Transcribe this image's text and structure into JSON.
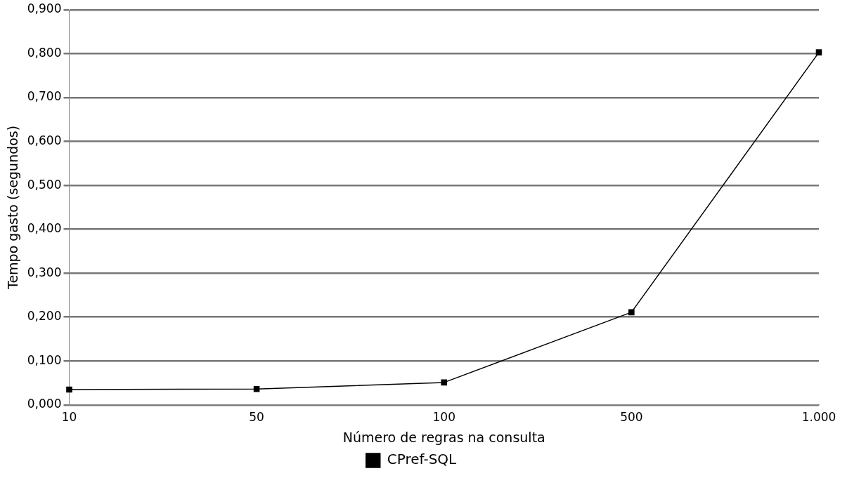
{
  "chart_data": {
    "type": "line",
    "xlabel": "Número de regras na consulta",
    "ylabel": "Tempo gasto (segundos)",
    "categories": [
      "10",
      "50",
      "100",
      "500",
      "1.000"
    ],
    "series": [
      {
        "name": "CPref-SQL",
        "color": "#000000",
        "values": [
          0.035,
          0.036,
          0.051,
          0.211,
          0.803
        ]
      }
    ],
    "ylim": [
      0,
      0.9
    ],
    "yticks": [
      {
        "value": 0,
        "label": "0,000"
      },
      {
        "value": 0.1,
        "label": "0,100"
      },
      {
        "value": 0.2,
        "label": "0,200"
      },
      {
        "value": 0.3,
        "label": "0,300"
      },
      {
        "value": 0.4,
        "label": "0,400"
      },
      {
        "value": 0.5,
        "label": "0,500"
      },
      {
        "value": 0.6,
        "label": "0,600"
      },
      {
        "value": 0.7,
        "label": "0,700"
      },
      {
        "value": 0.8,
        "label": "0,800"
      },
      {
        "value": 0.9,
        "label": "0,900"
      }
    ],
    "grid": "y",
    "legend": "bottom",
    "marker": "square",
    "line_style": "solid"
  }
}
